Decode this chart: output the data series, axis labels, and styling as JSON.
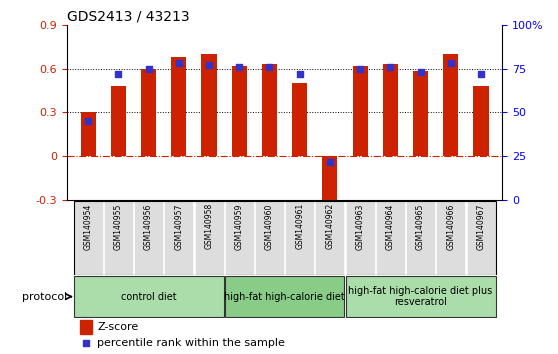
{
  "title": "GDS2413 / 43213",
  "samples": [
    "GSM140954",
    "GSM140955",
    "GSM140956",
    "GSM140957",
    "GSM140958",
    "GSM140959",
    "GSM140960",
    "GSM140961",
    "GSM140962",
    "GSM140963",
    "GSM140964",
    "GSM140965",
    "GSM140966",
    "GSM140967"
  ],
  "z_scores": [
    0.3,
    0.48,
    0.6,
    0.68,
    0.7,
    0.62,
    0.63,
    0.5,
    -0.32,
    0.62,
    0.63,
    0.585,
    0.7,
    0.48
  ],
  "percentile_ranks": [
    45,
    72,
    75,
    78,
    77,
    76,
    76,
    72,
    22,
    75,
    76,
    73,
    78,
    72
  ],
  "bar_color": "#CC2200",
  "dot_color": "#3333CC",
  "ylim_left": [
    -0.3,
    0.9
  ],
  "ylim_right": [
    0,
    100
  ],
  "yticks_left": [
    -0.3,
    0,
    0.3,
    0.6,
    0.9
  ],
  "ytick_labels_left": [
    "-0.3",
    "0",
    "0.3",
    "0.6",
    "0.9"
  ],
  "yticks_right": [
    0,
    25,
    50,
    75,
    100
  ],
  "ytick_labels_right": [
    "0",
    "25",
    "50",
    "75",
    "100%"
  ],
  "hlines": [
    0.3,
    0.6
  ],
  "groups": [
    {
      "label": "control diet",
      "start": 0,
      "end": 5,
      "color": "#AADDAA"
    },
    {
      "label": "high-fat high-calorie diet",
      "start": 5,
      "end": 9,
      "color": "#88CC88"
    },
    {
      "label": "high-fat high-calorie diet plus\nresveratrol",
      "start": 9,
      "end": 14,
      "color": "#AADDAA"
    }
  ],
  "protocol_label": "protocol",
  "legend_zscore": "Z-score",
  "legend_percentile": "percentile rank within the sample",
  "bar_width": 0.5,
  "sample_bg_color": "#DDDDDD",
  "group_border_color": "#333333"
}
